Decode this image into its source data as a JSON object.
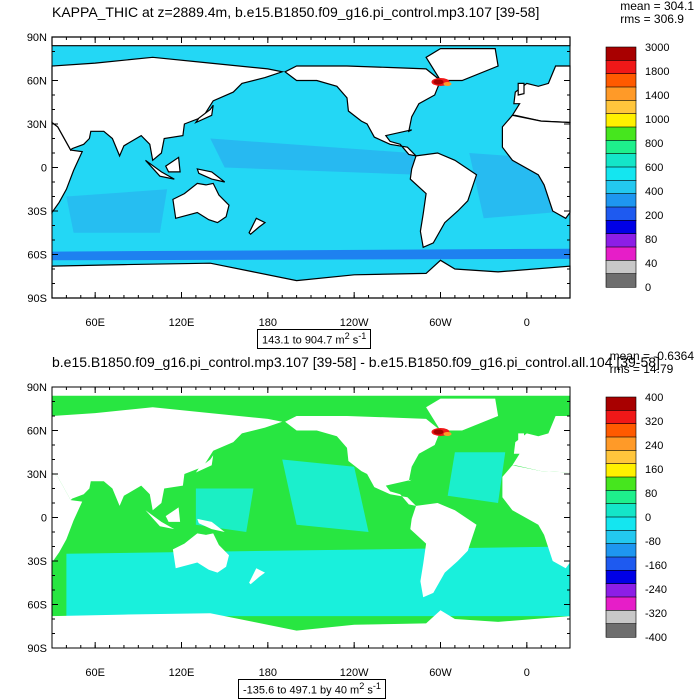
{
  "chart_data": [
    {
      "type": "heatmap",
      "title": "KAPPA_THIC at z=2889.4m, b.e15.B1850.f09_g16.pi_control.mp3.107 [39-58]",
      "stats": [
        "mean = 304.1",
        "rms = 306.9"
      ],
      "range_label": {
        "prefix": "143.1 to 904.7 m",
        "sup1": "2",
        "mid": " s",
        "sup2": "-1"
      },
      "x_ticks": [
        "60E",
        "120E",
        "180",
        "120W",
        "60W",
        "0"
      ],
      "y_ticks": [
        "90N",
        "60N",
        "30N",
        "0",
        "30S",
        "60S",
        "90S"
      ],
      "xlim": [
        30,
        390
      ],
      "ylim": [
        -90,
        90
      ],
      "colorbar_labels": [
        "3000",
        "1800",
        "1400",
        "1000",
        "800",
        "600",
        "400",
        "200",
        "80",
        "40",
        "0"
      ],
      "colorbar_colors": [
        "#a80000",
        "#f01818",
        "#ff5a00",
        "#ff9a28",
        "#ffc63c",
        "#fff000",
        "#46e61e",
        "#1ef08c",
        "#14e6c8",
        "#14e6f0",
        "#23c8f0",
        "#1e96f0",
        "#1e5af0",
        "#0000e6",
        "#8c1ee6",
        "#e61ec8",
        "#c8c8c8",
        "#6e6e6e"
      ],
      "dominant_level": "400-600"
    },
    {
      "type": "heatmap",
      "title": "b.e15.B1850.f09_g16.pi_control.mp3.107 [39-58] - b.e15.B1850.f09_g16.pi_control.all.104 [39-58]",
      "stats": [
        "mean = -0.6364",
        "rms = 14.79"
      ],
      "range_label": {
        "prefix": "-135.6 to 497.1 by 40 m",
        "sup1": "2",
        "mid": " s",
        "sup2": "-1"
      },
      "x_ticks": [
        "60E",
        "120E",
        "180",
        "120W",
        "60W",
        "0"
      ],
      "y_ticks": [
        "90N",
        "60N",
        "30N",
        "0",
        "30S",
        "60S",
        "90S"
      ],
      "xlim": [
        30,
        390
      ],
      "ylim": [
        -90,
        90
      ],
      "colorbar_labels": [
        "400",
        "320",
        "240",
        "160",
        "80",
        "0",
        "-80",
        "-160",
        "-240",
        "-320",
        "-400"
      ],
      "colorbar_colors": [
        "#a80000",
        "#f01818",
        "#ff5a00",
        "#ff9a28",
        "#ffc63c",
        "#fff000",
        "#46e61e",
        "#1ef08c",
        "#14e6c8",
        "#14e6f0",
        "#23c8f0",
        "#1e96f0",
        "#1e5af0",
        "#0000e6",
        "#8c1ee6",
        "#e61ec8",
        "#c8c8c8",
        "#6e6e6e"
      ],
      "dominant_level": "-40-40"
    }
  ],
  "colors": {
    "top_field": "#23d7f5",
    "top_field_alt": "#28b4f0",
    "top_low": "#1e78f0",
    "bottom_green": "#28e641",
    "bottom_cyan": "#19f0dc",
    "land": "#ffffff"
  }
}
